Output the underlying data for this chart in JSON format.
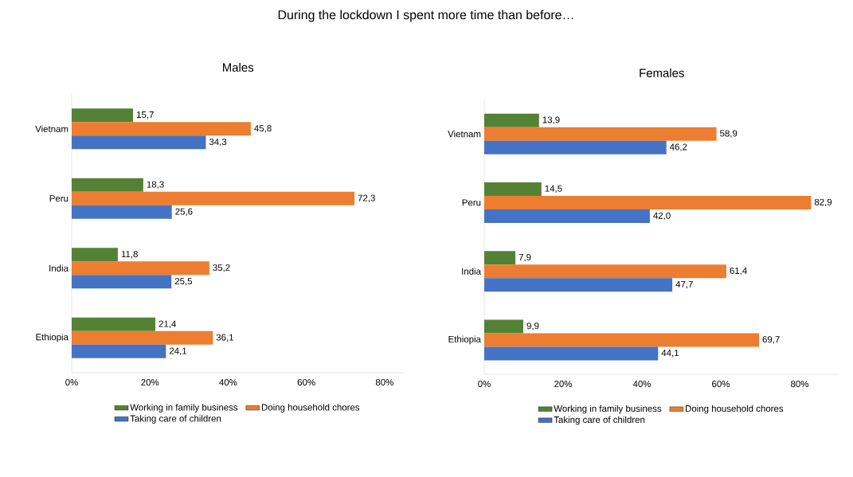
{
  "chart_data": [
    {
      "type": "bar",
      "orientation": "horizontal",
      "title": "Males",
      "annotations": [
        "During the lockdown I spent more time than before…"
      ],
      "categories": [
        "Vietnam",
        "Peru",
        "India",
        "Ethiopia"
      ],
      "series": [
        {
          "name": "Working in family business",
          "color": "#548235",
          "values": [
            15.7,
            18.3,
            11.8,
            21.4
          ],
          "value_labels": [
            "15,7",
            "18,3",
            "11,8",
            "21,4"
          ]
        },
        {
          "name": "Doing household chores",
          "color": "#ed7d31",
          "values": [
            45.8,
            72.3,
            35.2,
            36.1
          ],
          "value_labels": [
            "45,8",
            "72,3",
            "35,2",
            "36,1"
          ]
        },
        {
          "name": "Taking care of children",
          "color": "#4472c4",
          "values": [
            34.3,
            25.6,
            25.5,
            24.1
          ],
          "value_labels": [
            "34,3",
            "25,6",
            "25,5",
            "24,1"
          ]
        }
      ],
      "xlim": [
        0,
        85
      ],
      "xticks": [
        {
          "value": 0,
          "label": "0%"
        },
        {
          "value": 20,
          "label": "20%"
        },
        {
          "value": 40,
          "label": "40%"
        },
        {
          "value": 60,
          "label": "60%"
        },
        {
          "value": 80,
          "label": "80%"
        }
      ],
      "legend": "bottom"
    },
    {
      "type": "bar",
      "orientation": "horizontal",
      "title": "Females",
      "categories": [
        "Vietnam",
        "Peru",
        "India",
        "Ethiopia"
      ],
      "series": [
        {
          "name": "Working in family business",
          "color": "#548235",
          "values": [
            13.9,
            14.5,
            7.9,
            9.9
          ],
          "value_labels": [
            "13,9",
            "14,5",
            "7,9",
            "9,9"
          ]
        },
        {
          "name": "Doing household chores",
          "color": "#ed7d31",
          "values": [
            58.9,
            82.9,
            61.4,
            69.7
          ],
          "value_labels": [
            "58,9",
            "82,9",
            "61,4",
            "69,7"
          ]
        },
        {
          "name": "Taking care of children",
          "color": "#4472c4",
          "values": [
            46.2,
            42.0,
            47.7,
            44.1
          ],
          "value_labels": [
            "46,2",
            "42,0",
            "47,7",
            "44,1"
          ]
        }
      ],
      "xlim": [
        0,
        90
      ],
      "xticks": [
        {
          "value": 0,
          "label": "0%"
        },
        {
          "value": 20,
          "label": "20%"
        },
        {
          "value": 40,
          "label": "40%"
        },
        {
          "value": 60,
          "label": "60%"
        },
        {
          "value": 80,
          "label": "80%"
        }
      ],
      "legend": "bottom"
    }
  ]
}
